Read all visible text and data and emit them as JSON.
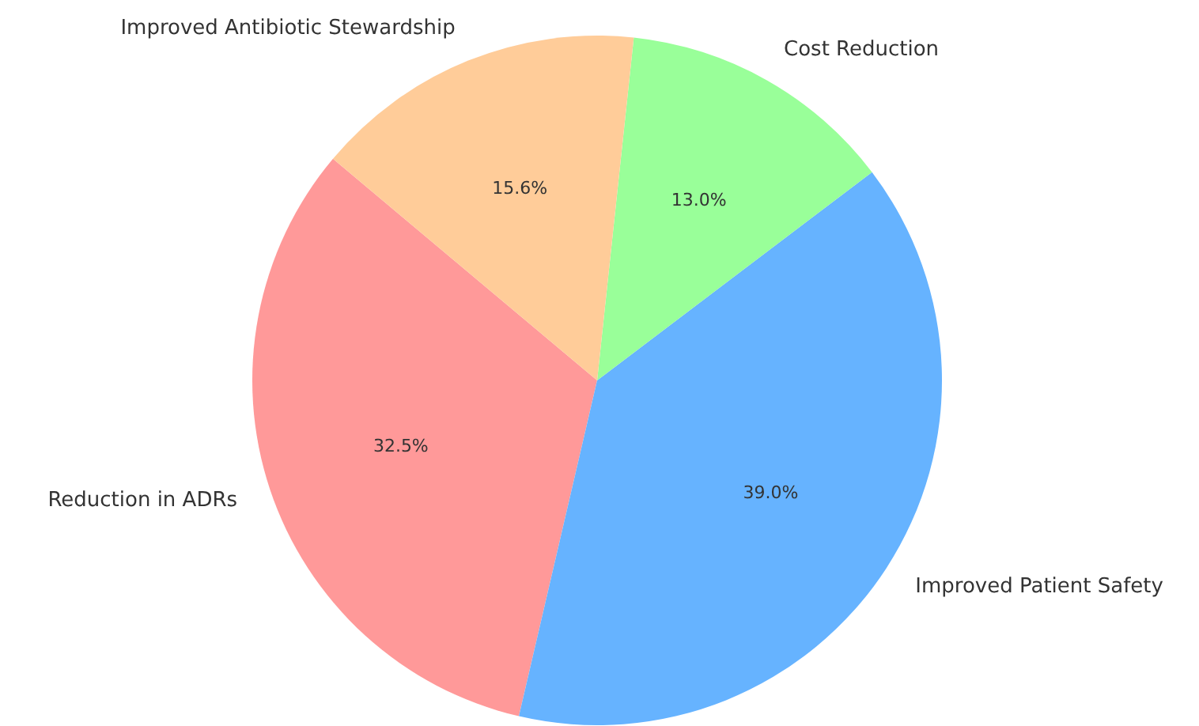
{
  "chart_data": {
    "type": "pie",
    "categories": [
      "Reduction in ADRs",
      "Improved Patient Safety",
      "Cost Reduction",
      "Improved Antibiotic Stewardship"
    ],
    "values": [
      32.5,
      39.0,
      13.0,
      15.6
    ],
    "value_labels": [
      "32.5%",
      "39.0%",
      "13.0%",
      "15.6%"
    ],
    "colors": [
      "#ff9999",
      "#66b3ff",
      "#99ff99",
      "#ffcc99"
    ]
  }
}
